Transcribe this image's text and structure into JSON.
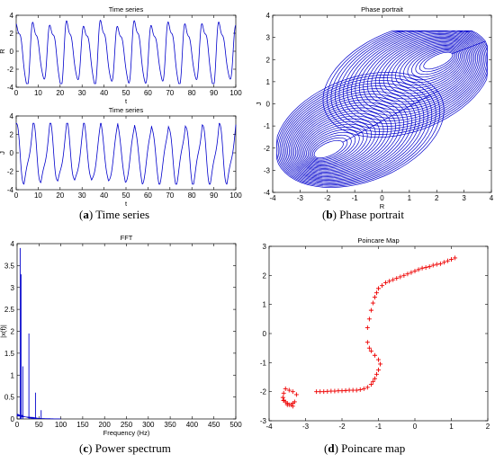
{
  "chart_data": [
    {
      "id": "ts_r",
      "type": "line",
      "title": "Time series",
      "xlabel": "t",
      "ylabel": "R",
      "xlim": [
        0,
        100
      ],
      "ylim": [
        -4,
        4
      ],
      "xticks": [
        0,
        10,
        20,
        30,
        40,
        50,
        60,
        70,
        80,
        90,
        100
      ],
      "yticks": [
        -4,
        -2,
        0,
        2,
        4
      ],
      "color": "#0000cc",
      "description_values": {
        "period": 7.7,
        "peak": 3.6,
        "trough": -3.6
      },
      "series": [
        {
          "t": [
            0,
            100
          ],
          "range": [
            -3.6,
            3.6
          ]
        }
      ]
    },
    {
      "id": "ts_j",
      "type": "line",
      "title": "Time series",
      "xlabel": "t",
      "ylabel": "J",
      "xlim": [
        0,
        100
      ],
      "ylim": [
        -4,
        4
      ],
      "xticks": [
        0,
        10,
        20,
        30,
        40,
        50,
        60,
        70,
        80,
        90,
        100
      ],
      "yticks": [
        -4,
        -2,
        0,
        2,
        4
      ],
      "color": "#0000cc",
      "series": [
        {
          "t": [
            0,
            100
          ],
          "range": [
            -3.4,
            3.2
          ]
        }
      ]
    },
    {
      "id": "phase",
      "type": "line",
      "title": "Phase portrait",
      "xlabel": "R",
      "ylabel": "J",
      "xlim": [
        -4,
        4
      ],
      "ylim": [
        -4,
        4
      ],
      "xticks": [
        -4,
        -3,
        -2,
        -1,
        0,
        1,
        2,
        3,
        4
      ],
      "yticks": [
        -4,
        -3,
        -2,
        -1,
        0,
        1,
        2,
        3,
        4
      ],
      "color": "#0000cc",
      "loop_centers": [
        [
          2.1,
          1.9
        ],
        [
          -2.0,
          -2.1
        ]
      ]
    },
    {
      "id": "fft",
      "type": "line",
      "title": "FFT",
      "xlabel": "Frequency (Hz)",
      "ylabel": "|x(f)|",
      "xlim": [
        0,
        500
      ],
      "ylim": [
        0,
        4
      ],
      "xticks": [
        0,
        50,
        100,
        150,
        200,
        250,
        300,
        350,
        400,
        450,
        500
      ],
      "yticks": [
        0,
        0.5,
        1,
        1.5,
        2,
        2.5,
        3,
        3.5,
        4
      ],
      "color": "#0000cc",
      "peaks": [
        {
          "f": 7,
          "amp": 3.9
        },
        {
          "f": 9,
          "amp": 3.3
        },
        {
          "f": 13,
          "amp": 1.2
        },
        {
          "f": 27,
          "amp": 1.95
        },
        {
          "f": 42,
          "amp": 0.6
        },
        {
          "f": 55,
          "amp": 0.2
        }
      ]
    },
    {
      "id": "poincare",
      "type": "scatter",
      "title": "Poincare Map",
      "xlim": [
        -4,
        2
      ],
      "ylim": [
        -3,
        3
      ],
      "xticks": [
        -4,
        -3,
        -2,
        -1,
        0,
        1,
        2
      ],
      "yticks": [
        -3,
        -2,
        -1,
        0,
        1,
        2,
        3
      ],
      "color": "#ee0000",
      "marker": "+",
      "x": [
        1.1,
        1.0,
        0.9,
        0.8,
        0.7,
        0.6,
        0.5,
        0.4,
        0.3,
        0.2,
        0.1,
        0.0,
        -0.1,
        -0.2,
        -0.3,
        -0.4,
        -0.5,
        -0.6,
        -0.7,
        -0.8,
        -0.9,
        -1.0,
        -1.05,
        -1.1,
        -1.15,
        -1.2,
        -1.25,
        -1.3,
        -1.3,
        -1.25,
        -1.2,
        -1.1,
        -1.0,
        -0.95,
        -1.0,
        -1.05,
        -1.1,
        -1.15,
        -1.2,
        -1.3,
        -1.4,
        -1.5,
        -1.6,
        -1.7,
        -1.8,
        -1.9,
        -2.0,
        -2.1,
        -2.2,
        -2.3,
        -2.4,
        -2.5,
        -2.6,
        -2.7,
        -3.25,
        -3.35,
        -3.45,
        -3.55,
        -3.6,
        -3.62,
        -3.6,
        -3.55,
        -3.5,
        -3.45,
        -3.4,
        -3.35,
        -3.3,
        -3.35,
        -3.5,
        -3.6
      ],
      "y": [
        2.6,
        2.55,
        2.5,
        2.45,
        2.4,
        2.38,
        2.35,
        2.3,
        2.27,
        2.25,
        2.2,
        2.15,
        2.1,
        2.05,
        2.0,
        1.95,
        1.9,
        1.85,
        1.8,
        1.75,
        1.65,
        1.55,
        1.4,
        1.25,
        1.05,
        0.8,
        0.5,
        0.2,
        -0.3,
        -0.5,
        -0.6,
        -0.75,
        -0.9,
        -1.05,
        -1.25,
        -1.4,
        -1.55,
        -1.65,
        -1.75,
        -1.85,
        -1.9,
        -1.93,
        -1.95,
        -1.95,
        -1.95,
        -1.96,
        -1.97,
        -1.97,
        -1.98,
        -1.98,
        -1.99,
        -2.0,
        -2.0,
        -2.0,
        -2.1,
        -2.0,
        -1.95,
        -1.9,
        -2.05,
        -2.2,
        -2.3,
        -2.35,
        -2.4,
        -2.45,
        -2.45,
        -2.4,
        -2.35,
        -2.5,
        -2.45,
        -2.3
      ]
    }
  ],
  "captions": [
    {
      "letter": "a",
      "text": " Time series"
    },
    {
      "letter": "b",
      "text": " Phase portrait"
    },
    {
      "letter": "c",
      "text": " Power spectrum"
    },
    {
      "letter": "d",
      "text": " Poincare map"
    }
  ]
}
